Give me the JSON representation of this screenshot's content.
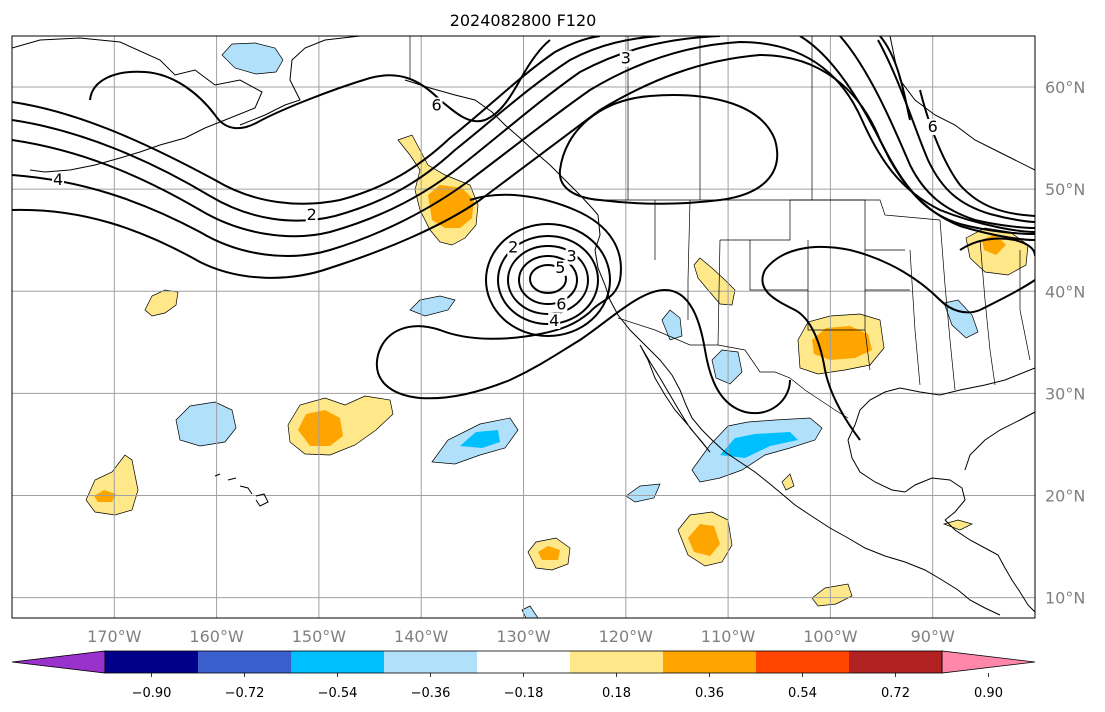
{
  "title": "2024082800 F120",
  "map": {
    "lon_range": [
      -180,
      -80
    ],
    "lat_range": [
      8,
      65
    ],
    "lon_ticks": [
      {
        "value": -170,
        "label": "170°W"
      },
      {
        "value": -160,
        "label": "160°W"
      },
      {
        "value": -150,
        "label": "150°W"
      },
      {
        "value": -140,
        "label": "140°W"
      },
      {
        "value": -130,
        "label": "130°W"
      },
      {
        "value": -120,
        "label": "120°W"
      },
      {
        "value": -110,
        "label": "110°W"
      },
      {
        "value": -100,
        "label": "100°W"
      },
      {
        "value": -90,
        "label": "90°W"
      }
    ],
    "lat_ticks": [
      {
        "value": 60,
        "label": "60°N"
      },
      {
        "value": 50,
        "label": "50°N"
      },
      {
        "value": 40,
        "label": "40°N"
      },
      {
        "value": 30,
        "label": "30°N"
      },
      {
        "value": 20,
        "label": "20°N"
      },
      {
        "value": 10,
        "label": "10°N"
      }
    ],
    "contour_labels": [
      {
        "text": "3",
        "lon": -120,
        "lat": 62.4
      },
      {
        "text": "6",
        "lon": -138.5,
        "lat": 57.8
      },
      {
        "text": "4",
        "lon": -175.5,
        "lat": 50.5
      },
      {
        "text": "2",
        "lon": -150.7,
        "lat": 47.1
      },
      {
        "text": "2",
        "lon": -131.0,
        "lat": 43.9
      },
      {
        "text": "3",
        "lon": -125.3,
        "lat": 43.0
      },
      {
        "text": "5",
        "lon": -126.4,
        "lat": 41.9
      },
      {
        "text": "6",
        "lon": -126.3,
        "lat": 38.3
      },
      {
        "text": "4",
        "lon": -127.0,
        "lat": 36.7
      },
      {
        "text": "6",
        "lon": -90.0,
        "lat": 55.7
      }
    ]
  },
  "colorbar": {
    "colors": [
      "#9932cc",
      "#00008b",
      "#3a5fcd",
      "#00bfff",
      "#b0e0fa",
      "#ffffff",
      "#ffe88a",
      "#ffa500",
      "#ff4500",
      "#b22222",
      "#ff88aa"
    ],
    "tick_labels": [
      "−0.90",
      "−0.72",
      "−0.54",
      "−0.36",
      "−0.18",
      "0.18",
      "0.36",
      "0.54",
      "0.72",
      "0.90"
    ]
  }
}
